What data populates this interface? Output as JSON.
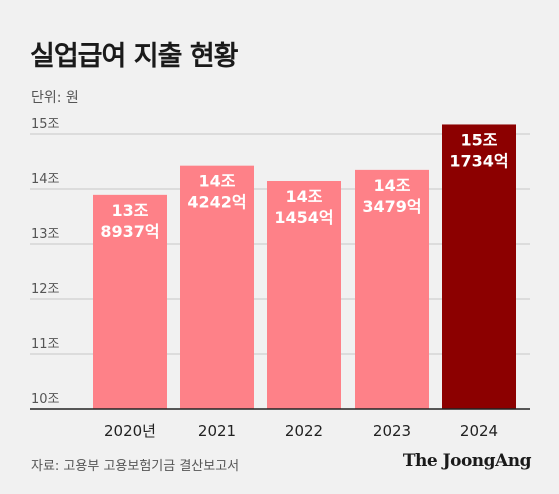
{
  "title": "실업급여 지출 현황",
  "unit": "단위: 원",
  "source": "자료: 고용부 고용보험기금 결산보고서",
  "brand": "The JoongAng",
  "chart_data": {
    "type": "bar",
    "categories": [
      "2020년",
      "2021",
      "2022",
      "2023",
      "2024"
    ],
    "values": [
      13.8937,
      14.4242,
      14.1454,
      14.3479,
      15.1734
    ],
    "data_labels": [
      [
        "13조",
        "8937억"
      ],
      [
        "14조",
        "4242억"
      ],
      [
        "14조",
        "1454억"
      ],
      [
        "14조",
        "3479억"
      ],
      [
        "15조",
        "1734억"
      ]
    ],
    "y_ticks": [
      10,
      11,
      12,
      13,
      14,
      15
    ],
    "y_tick_labels": [
      "10조",
      "11조",
      "12조",
      "13조",
      "14조",
      "15조"
    ],
    "ylim": [
      10,
      15
    ],
    "grid": true,
    "colors": {
      "bar": "#fe8188",
      "highlight": "#8c0000",
      "grid": "#c8c8c8",
      "axis": "#222222",
      "label": "#ffffff"
    },
    "highlight_index": 4
  }
}
